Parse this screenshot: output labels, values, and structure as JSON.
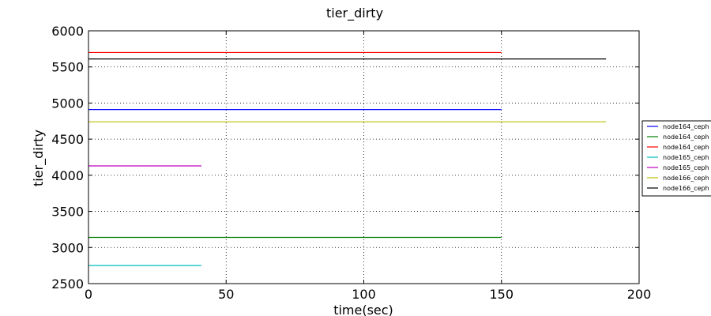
{
  "chart_data": {
    "type": "line",
    "title": "tier_dirty",
    "xlabel": "time(sec)",
    "ylabel": "tier_dirty",
    "xlim": [
      0,
      200
    ],
    "ylim": [
      2500,
      6000
    ],
    "xticks": [
      0,
      50,
      100,
      150,
      200
    ],
    "yticks": [
      2500,
      3000,
      3500,
      4000,
      4500,
      5000,
      5500,
      6000
    ],
    "grid": true,
    "legend_position": "right",
    "series": [
      {
        "name": "node164_ceph",
        "color": "#0000ff",
        "x": [
          0,
          150
        ],
        "y": [
          4910,
          4910
        ]
      },
      {
        "name": "node164_ceph",
        "color": "#008000",
        "x": [
          0,
          150
        ],
        "y": [
          3140,
          3140
        ]
      },
      {
        "name": "node164_ceph",
        "color": "#ff0000",
        "x": [
          0,
          150
        ],
        "y": [
          5700,
          5700
        ]
      },
      {
        "name": "node165_ceph",
        "color": "#00bfbf",
        "x": [
          0,
          41
        ],
        "y": [
          2750,
          2750
        ]
      },
      {
        "name": "node165_ceph",
        "color": "#bf00bf",
        "x": [
          0,
          41
        ],
        "y": [
          4130,
          4130
        ]
      },
      {
        "name": "node166_ceph",
        "color": "#bfbf00",
        "x": [
          0,
          188
        ],
        "y": [
          4740,
          4740
        ]
      },
      {
        "name": "node166_ceph",
        "color": "#000000",
        "x": [
          0,
          188
        ],
        "y": [
          5610,
          5610
        ]
      }
    ]
  }
}
